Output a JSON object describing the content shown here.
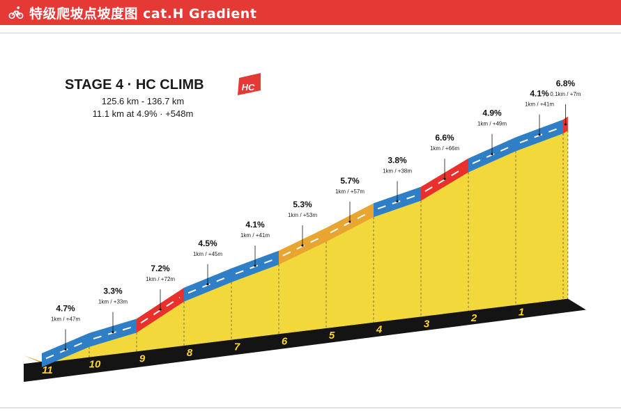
{
  "header": {
    "title": "特级爬坡点坡度图 cat.H Gradient"
  },
  "stage": {
    "title": "STAGE 4 · HC CLIMB",
    "badge": "HC",
    "range": "125.6 km - 136.7 km",
    "summary": "11.1 km at 4.9% · +548m"
  },
  "colors": {
    "header": "#e53935",
    "fill": "#f2d83b",
    "base": "#141414",
    "km_text": "#ffd52e",
    "blue": "#2f7fc6",
    "red": "#e8312c",
    "orange": "#e8a531"
  },
  "chart_data": {
    "type": "area",
    "x_direction": "km to summit",
    "segments": [
      {
        "km_label": "11",
        "gradient": "4.7%",
        "detail": "1km / +47m",
        "color": "blue"
      },
      {
        "km_label": "10",
        "gradient": "3.3%",
        "detail": "1km / +33m",
        "color": "blue"
      },
      {
        "km_label": "9",
        "gradient": "7.2%",
        "detail": "1km / +72m",
        "color": "red"
      },
      {
        "km_label": "8",
        "gradient": "4.5%",
        "detail": "1km / +45m",
        "color": "blue"
      },
      {
        "km_label": "7",
        "gradient": "4.1%",
        "detail": "1km / +41m",
        "color": "blue"
      },
      {
        "km_label": "6",
        "gradient": "5.3%",
        "detail": "1km / +53m",
        "color": "orange"
      },
      {
        "km_label": "5",
        "gradient": "5.7%",
        "detail": "1km / +57m",
        "color": "orange"
      },
      {
        "km_label": "4",
        "gradient": "3.8%",
        "detail": "1km / +38m",
        "color": "blue"
      },
      {
        "km_label": "3",
        "gradient": "6.6%",
        "detail": "1km / +66m",
        "color": "red"
      },
      {
        "km_label": "2",
        "gradient": "4.9%",
        "detail": "1km / +49m",
        "color": "blue"
      },
      {
        "km_label": "1",
        "gradient": "4.1%",
        "detail": "1km / +41m",
        "color": "blue"
      },
      {
        "km_label": "",
        "gradient": "6.8%",
        "detail": "0.1km / +7m",
        "color": "red"
      }
    ]
  }
}
